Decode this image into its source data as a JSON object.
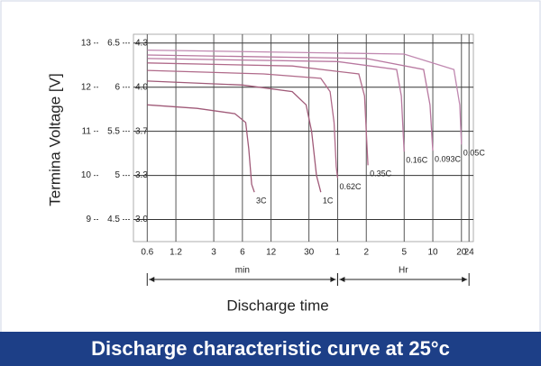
{
  "chart_data": {
    "type": "line",
    "title": "Discharge characteristic curve at 25°c",
    "x_label": "Discharge time",
    "y_label": "Termina Voltage [V]",
    "xscale": "log",
    "xlim": [
      0.43,
      1600
    ],
    "xticks": [
      0.6,
      1.2,
      3,
      6,
      12,
      30,
      {
        "value": 60,
        "label": "1"
      },
      {
        "value": 120,
        "label": "2"
      },
      {
        "value": 300,
        "label": "5"
      },
      {
        "value": 600,
        "label": "10"
      },
      {
        "value": 1200,
        "label": "20"
      },
      {
        "value": 1440,
        "label": "24"
      }
    ],
    "x_groups": [
      {
        "label": "min",
        "range": [
          0.6,
          60
        ]
      },
      {
        "label": "Hr",
        "range": [
          60,
          1440
        ]
      }
    ],
    "ylim": [
      8.5,
      13.2
    ],
    "yticks": [
      9,
      10,
      11,
      12,
      13
    ],
    "y2lim": [
      4.25,
      6.6
    ],
    "y2ticks": [
      4.5,
      5.0,
      5.5,
      6.0,
      6.5
    ],
    "y3ticks": [
      {
        "value": 9,
        "label": "3.0"
      },
      {
        "value": 10,
        "label": "3.3"
      },
      {
        "value": 11,
        "label": "3.7"
      },
      {
        "value": 12,
        "label": "4.0"
      },
      {
        "value": 13,
        "label": "4.3"
      }
    ],
    "grid": true,
    "series": [
      {
        "name": "3C",
        "color": "#a05a78",
        "x": [
          0.6,
          2,
          5,
          6.5,
          7,
          7.5,
          8
        ],
        "values": [
          11.6,
          11.52,
          11.4,
          11.2,
          10.6,
          9.8,
          9.62
        ]
      },
      {
        "name": "1C",
        "color": "#a05a78",
        "x": [
          0.6,
          6,
          20,
          28,
          32,
          36,
          40
        ],
        "values": [
          12.14,
          12.05,
          11.9,
          11.6,
          11.0,
          10.0,
          9.62
        ]
      },
      {
        "name": "0.62C",
        "color": "#b06a8a",
        "x": [
          0.6,
          10,
          40,
          50,
          55,
          58,
          60
        ],
        "values": [
          12.38,
          12.3,
          12.2,
          11.9,
          11.2,
          10.2,
          9.94
        ]
      },
      {
        "name": "0.35C",
        "color": "#b06a8a",
        "x": [
          0.6,
          20,
          100,
          115,
          120,
          125
        ],
        "values": [
          12.55,
          12.48,
          12.3,
          11.8,
          11.0,
          10.23
        ]
      },
      {
        "name": "0.16C",
        "color": "#b878a0",
        "x": [
          0.6,
          60,
          250,
          280,
          300
        ],
        "values": [
          12.65,
          12.58,
          12.4,
          11.8,
          10.54
        ]
      },
      {
        "name": "0.093C",
        "color": "#b878a0",
        "x": [
          0.6,
          120,
          480,
          560,
          600
        ],
        "values": [
          12.73,
          12.65,
          12.4,
          11.6,
          10.56
        ]
      },
      {
        "name": "0.05C",
        "color": "#c088b0",
        "x": [
          0.6,
          300,
          1000,
          1150,
          1200
        ],
        "values": [
          12.84,
          12.75,
          12.4,
          11.6,
          10.7
        ]
      }
    ]
  }
}
